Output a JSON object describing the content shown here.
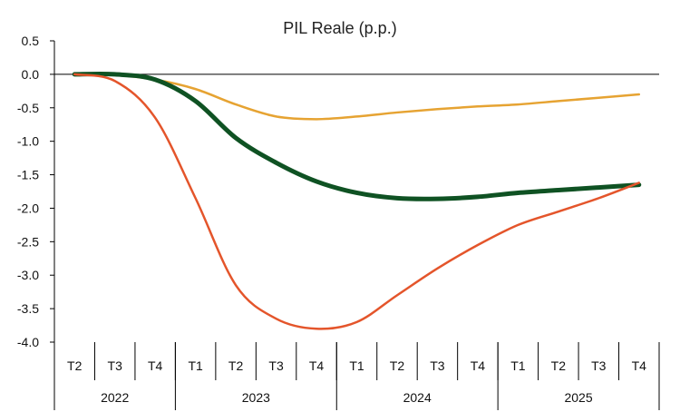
{
  "chart_data": {
    "type": "line",
    "title": "PIL Reale (p.p.)",
    "xlabel": "",
    "ylabel": "",
    "ylim": [
      -4.0,
      0.5
    ],
    "yticks": [
      "0.5",
      "0.0",
      "-0.5",
      "-1.0",
      "-1.5",
      "-2.0",
      "-2.5",
      "-3.0",
      "-3.5",
      "-4.0"
    ],
    "grid": false,
    "legend": "none",
    "categories": [
      "T2",
      "T3",
      "T4",
      "T1",
      "T2",
      "T3",
      "T4",
      "T1",
      "T2",
      "T3",
      "T4",
      "T1",
      "T2",
      "T3",
      "T4"
    ],
    "years": [
      {
        "label": "2022",
        "span": 3
      },
      {
        "label": "2023",
        "span": 4
      },
      {
        "label": "2024",
        "span": 4
      },
      {
        "label": "2025",
        "span": 4
      }
    ],
    "series": [
      {
        "color": "#E6A332",
        "width": 2.5,
        "values": [
          0.0,
          -0.01,
          -0.08,
          -0.22,
          -0.45,
          -0.63,
          -0.67,
          -0.63,
          -0.57,
          -0.52,
          -0.48,
          -0.45,
          -0.4,
          -0.35,
          -0.3
        ]
      },
      {
        "color": "#0F5223",
        "width": 5,
        "values": [
          0.0,
          0.0,
          -0.08,
          -0.4,
          -0.95,
          -1.32,
          -1.6,
          -1.77,
          -1.85,
          -1.86,
          -1.83,
          -1.77,
          -1.73,
          -1.69,
          -1.65
        ]
      },
      {
        "color": "#E4552B",
        "width": 2.5,
        "values": [
          0.0,
          -0.1,
          -0.65,
          -1.85,
          -3.15,
          -3.65,
          -3.8,
          -3.7,
          -3.3,
          -2.9,
          -2.55,
          -2.25,
          -2.05,
          -1.85,
          -1.62
        ]
      }
    ]
  }
}
